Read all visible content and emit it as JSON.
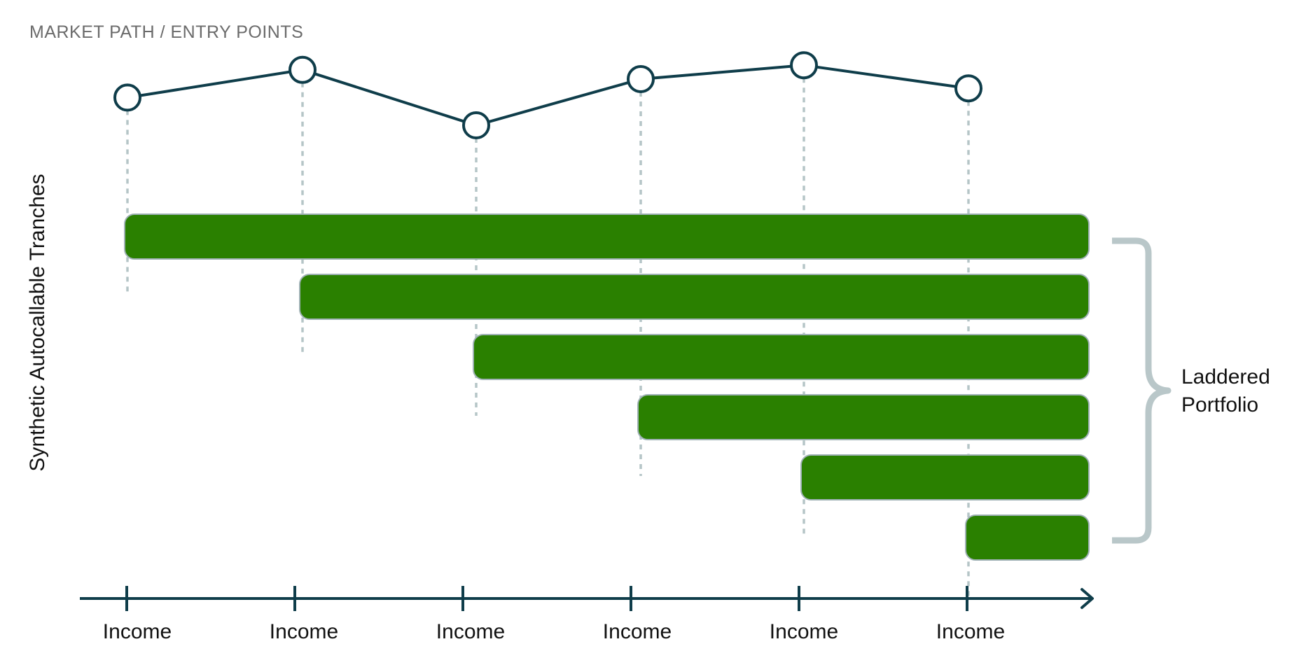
{
  "caption": "MARKET PATH / ENTRY POINTS",
  "vertical_label": "Synthetic Autocallable Tranches",
  "bracket_label": [
    "Laddered",
    "Portfolio"
  ],
  "timeline": {
    "labels": [
      "Income",
      "Income",
      "Income",
      "Income",
      "Income",
      "Income"
    ]
  },
  "colors": {
    "path_line": "#0f3d4a",
    "tranche_fill": "#2a8000",
    "tranche_border": "#9fb1b5",
    "guide_line": "#b5c5c7",
    "bracket": "#b9c7c9",
    "axis": "#0f3d4a"
  },
  "market_path": {
    "levels": [
      0.73,
      0.91,
      0.55,
      0.85,
      0.94,
      0.79
    ]
  },
  "tranches": {
    "count": 6,
    "start_points": [
      1,
      2,
      3,
      4,
      5,
      6
    ]
  }
}
